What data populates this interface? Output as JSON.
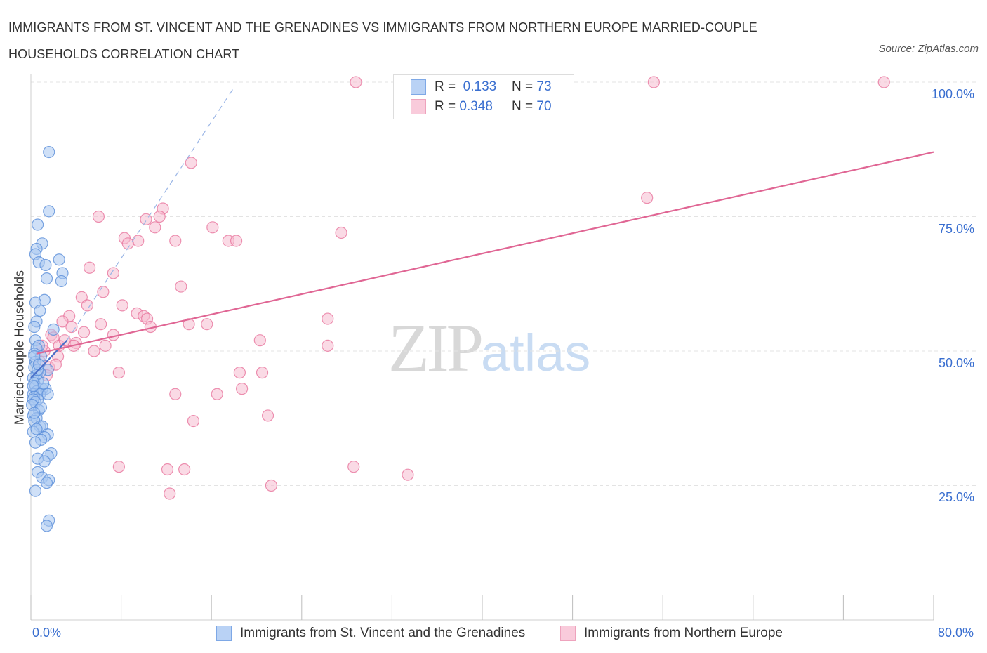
{
  "title": "IMMIGRANTS FROM ST. VINCENT AND THE GRENADINES VS IMMIGRANTS FROM NORTHERN EUROPE MARRIED-COUPLE HOUSEHOLDS CORRELATION CHART",
  "source": "Source: ZipAtlas.com",
  "watermark": {
    "zip": "ZIP",
    "atlas": "atlas"
  },
  "legend": {
    "r_label": "R =",
    "n_label": "N =",
    "blue": {
      "r": "0.133",
      "n": "73"
    },
    "pink": {
      "r": "0.348",
      "n": "70"
    }
  },
  "chart_data": {
    "type": "scatter",
    "title": "IMMIGRANTS FROM ST. VINCENT AND THE GRENADINES VS IMMIGRANTS FROM NORTHERN EUROPE MARRIED-COUPLE HOUSEHOLDS CORRELATION CHART",
    "xlabel": "",
    "ylabel": "Married-couple Households",
    "xlim": [
      0,
      80
    ],
    "ylim": [
      0,
      100
    ],
    "x_tick_labels": [
      "0.0%",
      "80.0%"
    ],
    "y_tick_labels": [
      "100.0%",
      "75.0%",
      "50.0%",
      "25.0%"
    ],
    "y_ticks": [
      100,
      75,
      50,
      25
    ],
    "grid": true,
    "colors": {
      "blue": "#5b8fd9",
      "blue_fill": "#a8c6f0",
      "pink": "#e8769d",
      "pink_fill": "#f5bcd0"
    },
    "series": [
      {
        "name": "Immigrants from St. Vincent and the Grenadines",
        "color": "blue",
        "r": 0.133,
        "n": 73,
        "trend": {
          "solid": [
            [
              0.0,
              45.0
            ],
            [
              3.2,
              52.0
            ]
          ],
          "dashed": [
            [
              3.2,
              52.0
            ],
            [
              18.0,
              99.0
            ]
          ]
        },
        "points": [
          [
            1.6,
            87.0
          ],
          [
            1.6,
            76.0
          ],
          [
            0.6,
            73.5
          ],
          [
            1.0,
            70.0
          ],
          [
            0.5,
            69.0
          ],
          [
            0.4,
            68.0
          ],
          [
            2.5,
            67.0
          ],
          [
            0.7,
            66.5
          ],
          [
            1.3,
            66.0
          ],
          [
            2.8,
            64.5
          ],
          [
            1.4,
            63.5
          ],
          [
            2.7,
            63.0
          ],
          [
            1.2,
            59.5
          ],
          [
            0.4,
            59.0
          ],
          [
            0.8,
            57.5
          ],
          [
            0.5,
            55.5
          ],
          [
            0.3,
            54.5
          ],
          [
            2.0,
            54.0
          ],
          [
            0.4,
            52.0
          ],
          [
            0.7,
            51.0
          ],
          [
            0.5,
            50.5
          ],
          [
            0.3,
            49.5
          ],
          [
            0.9,
            49.0
          ],
          [
            0.4,
            48.0
          ],
          [
            0.3,
            47.0
          ],
          [
            1.5,
            46.5
          ],
          [
            0.8,
            46.0
          ],
          [
            0.5,
            45.5
          ],
          [
            0.2,
            45.0
          ],
          [
            0.6,
            44.5
          ],
          [
            0.3,
            44.0
          ],
          [
            0.4,
            43.5
          ],
          [
            1.0,
            43.0
          ],
          [
            1.3,
            43.0
          ],
          [
            0.5,
            42.5
          ],
          [
            0.2,
            42.0
          ],
          [
            0.8,
            42.0
          ],
          [
            1.5,
            42.0
          ],
          [
            0.3,
            41.5
          ],
          [
            0.6,
            41.0
          ],
          [
            0.2,
            41.0
          ],
          [
            0.4,
            40.5
          ],
          [
            0.1,
            40.0
          ],
          [
            0.7,
            39.0
          ],
          [
            0.2,
            38.0
          ],
          [
            0.5,
            37.5
          ],
          [
            0.3,
            37.0
          ],
          [
            0.8,
            36.0
          ],
          [
            1.0,
            36.0
          ],
          [
            0.2,
            35.0
          ],
          [
            1.5,
            34.5
          ],
          [
            1.2,
            34.0
          ],
          [
            0.9,
            33.5
          ],
          [
            0.4,
            33.0
          ],
          [
            1.8,
            31.0
          ],
          [
            1.5,
            30.5
          ],
          [
            0.6,
            30.0
          ],
          [
            1.2,
            29.5
          ],
          [
            0.6,
            27.5
          ],
          [
            1.0,
            26.5
          ],
          [
            1.6,
            26.0
          ],
          [
            1.4,
            25.5
          ],
          [
            0.4,
            24.0
          ],
          [
            1.6,
            18.5
          ],
          [
            1.4,
            17.5
          ],
          [
            0.3,
            49.0
          ],
          [
            0.6,
            46.5
          ],
          [
            1.1,
            44.0
          ],
          [
            0.2,
            43.5
          ],
          [
            0.9,
            39.5
          ],
          [
            0.5,
            35.5
          ],
          [
            0.3,
            38.5
          ],
          [
            0.7,
            47.5
          ]
        ]
      },
      {
        "name": "Immigrants from Northern Europe",
        "color": "pink",
        "r": 0.348,
        "n": 70,
        "trend": {
          "solid": [
            [
              0.5,
              49.5
            ],
            [
              80.0,
              87.0
            ]
          ]
        },
        "points": [
          [
            28.8,
            100.0
          ],
          [
            55.2,
            100.0
          ],
          [
            75.6,
            100.0
          ],
          [
            14.2,
            85.0
          ],
          [
            54.6,
            78.5
          ],
          [
            11.7,
            76.5
          ],
          [
            6.0,
            75.0
          ],
          [
            10.2,
            74.5
          ],
          [
            11.4,
            75.0
          ],
          [
            11.0,
            73.0
          ],
          [
            16.1,
            73.0
          ],
          [
            27.5,
            72.0
          ],
          [
            8.3,
            71.0
          ],
          [
            9.5,
            70.5
          ],
          [
            12.8,
            70.5
          ],
          [
            17.5,
            70.5
          ],
          [
            18.2,
            70.5
          ],
          [
            8.6,
            70.0
          ],
          [
            5.2,
            65.5
          ],
          [
            7.3,
            64.5
          ],
          [
            13.3,
            62.0
          ],
          [
            4.5,
            60.0
          ],
          [
            6.4,
            61.0
          ],
          [
            5.0,
            58.5
          ],
          [
            8.1,
            58.5
          ],
          [
            9.4,
            57.0
          ],
          [
            10.0,
            56.5
          ],
          [
            10.3,
            56.0
          ],
          [
            3.4,
            56.5
          ],
          [
            2.8,
            55.5
          ],
          [
            6.2,
            55.0
          ],
          [
            14.0,
            55.0
          ],
          [
            15.6,
            55.0
          ],
          [
            26.3,
            56.0
          ],
          [
            10.6,
            54.5
          ],
          [
            3.6,
            54.5
          ],
          [
            4.7,
            53.5
          ],
          [
            7.3,
            53.0
          ],
          [
            1.8,
            53.0
          ],
          [
            2.0,
            52.5
          ],
          [
            20.3,
            52.0
          ],
          [
            2.5,
            51.0
          ],
          [
            4.0,
            51.5
          ],
          [
            3.8,
            51.0
          ],
          [
            6.6,
            51.0
          ],
          [
            26.3,
            51.0
          ],
          [
            1.2,
            50.0
          ],
          [
            5.6,
            50.0
          ],
          [
            2.4,
            49.0
          ],
          [
            1.6,
            47.0
          ],
          [
            7.8,
            46.0
          ],
          [
            18.5,
            46.0
          ],
          [
            20.5,
            46.0
          ],
          [
            1.4,
            45.5
          ],
          [
            18.7,
            43.0
          ],
          [
            12.8,
            42.0
          ],
          [
            16.5,
            42.0
          ],
          [
            21.0,
            38.0
          ],
          [
            14.4,
            37.0
          ],
          [
            7.8,
            28.5
          ],
          [
            12.1,
            28.0
          ],
          [
            13.6,
            28.0
          ],
          [
            28.6,
            28.5
          ],
          [
            33.4,
            27.0
          ],
          [
            21.3,
            25.0
          ],
          [
            12.3,
            23.5
          ],
          [
            0.8,
            48.0
          ],
          [
            3.0,
            52.0
          ],
          [
            1.0,
            51.0
          ],
          [
            2.2,
            47.5
          ]
        ]
      }
    ]
  },
  "bottom_legend": {
    "blue_label": "Immigrants from St. Vincent and the Grenadines",
    "pink_label": "Immigrants from Northern Europe"
  }
}
